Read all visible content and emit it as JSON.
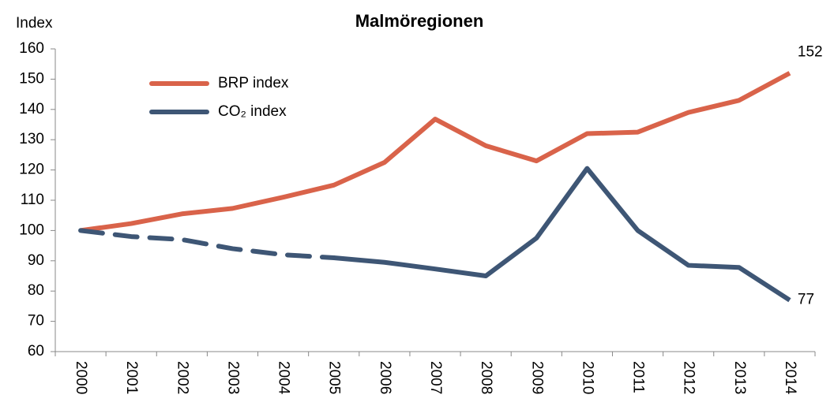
{
  "chart_data": {
    "type": "line",
    "title": "Malmöregionen",
    "y_label": "Index",
    "categories": [
      "2000",
      "2001",
      "2002",
      "2003",
      "2004",
      "2005",
      "2006",
      "2007",
      "2008",
      "2009",
      "2010",
      "2011",
      "2012",
      "2013",
      "2014"
    ],
    "series": [
      {
        "name": "BRP index",
        "color": "#d9634a",
        "values": [
          100,
          102.3,
          105.5,
          107.3,
          111,
          115,
          122.5,
          136.8,
          128,
          123,
          132,
          132.5,
          139,
          143,
          152
        ]
      },
      {
        "name": "CO₂ index",
        "color": "#3e5675",
        "dashed_through": "2005",
        "values": [
          100,
          98,
          97,
          94,
          92,
          91,
          89.5,
          87.3,
          85,
          97.5,
          120.5,
          100,
          88.5,
          87.8,
          77
        ]
      }
    ],
    "ylim": [
      60,
      160
    ],
    "yticks": [
      60,
      70,
      80,
      90,
      100,
      110,
      120,
      130,
      140,
      150,
      160
    ],
    "legend": "upper left"
  }
}
